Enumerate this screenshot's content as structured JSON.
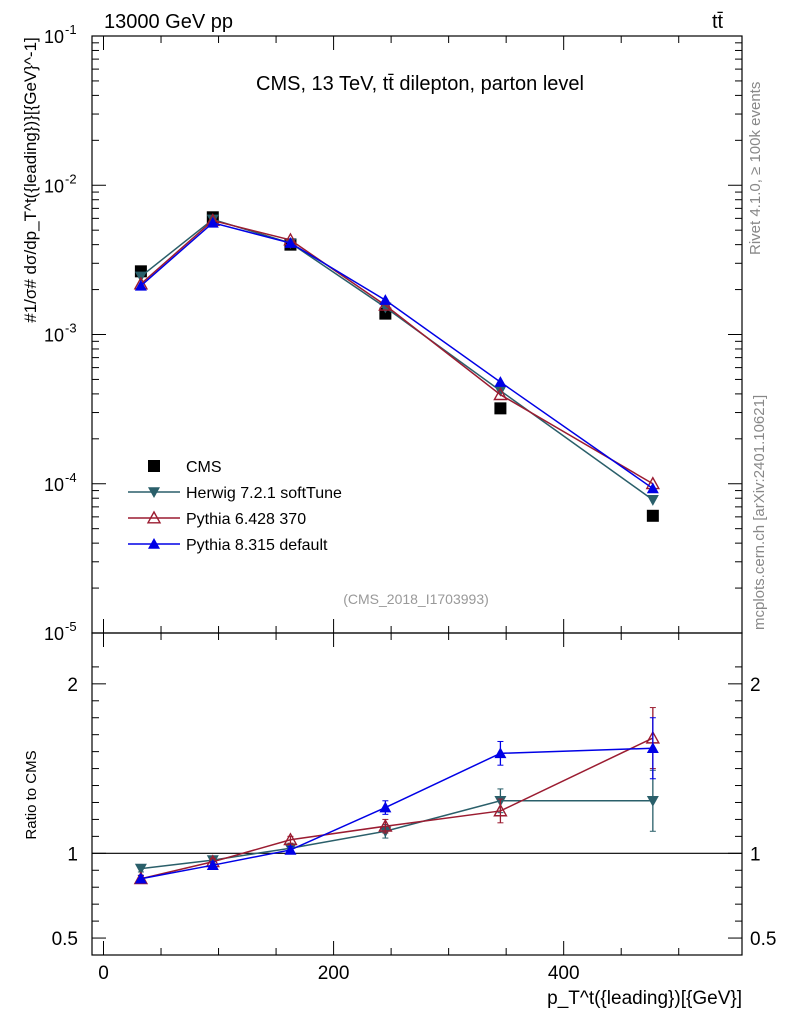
{
  "header": {
    "left": "13000 GeV pp",
    "right": "tt̄"
  },
  "side_texts": {
    "rivet": "Rivet 4.1.0, ≥ 100k events",
    "mcplots": "mcplots.cern.ch [arXiv:2401.10621]"
  },
  "chart_data": {
    "type": "line",
    "title": "CMS, 13 TeV, tt̄ dilepton, parton level",
    "analysis_id": "(CMS_2018_I1703993)",
    "xlabel": "p_T^t({leading})[{GeV}]",
    "ylabel": "#1/σ# dσ/dp_T^t({leading})}[{GeV}^-1]",
    "xlim": [
      -10,
      555
    ],
    "ylim_main": [
      1e-05,
      0.1
    ],
    "ylim_ratio": [
      0.4,
      2.3
    ],
    "ratio_ylabel": "Ratio to CMS",
    "x": [
      32.5,
      95,
      162.5,
      245,
      345,
      477.5
    ],
    "x_tick_labels": [
      "0",
      "200",
      "400"
    ],
    "y_tick_labels": [
      "10",
      "10",
      "10",
      "10",
      "10"
    ],
    "y_tick_exponents": [
      "-1",
      "-2",
      "-3",
      "-4",
      "-5"
    ],
    "ratio_tick_labels": [
      "0.5",
      "1",
      "2"
    ],
    "series": [
      {
        "name": "CMS",
        "color": "#000000",
        "marker": "square",
        "values": [
          0.00265,
          0.0061,
          0.004,
          0.00138,
          0.00032,
          6.1e-05
        ],
        "ratio": [
          1.0,
          1.0,
          1.0,
          1.0,
          1.0,
          1.0
        ],
        "ratio_err": [
          0,
          0,
          0,
          0,
          0,
          0
        ]
      },
      {
        "name": "Herwig 7.2.1 softTune",
        "color": "#2a5f6a",
        "marker": "triangle-down",
        "values": [
          0.00245,
          0.0059,
          0.0041,
          0.00152,
          0.00042,
          7.8e-05
        ],
        "ratio": [
          0.91,
          0.96,
          1.03,
          1.13,
          1.31,
          1.31
        ],
        "ratio_err": [
          0.02,
          0.02,
          0.02,
          0.04,
          0.07,
          0.18
        ]
      },
      {
        "name": "Pythia 6.428 370",
        "color": "#9b1c31",
        "marker": "triangle-open",
        "values": [
          0.00218,
          0.0058,
          0.0043,
          0.00157,
          0.000395,
          0.0001
        ],
        "ratio": [
          0.85,
          0.95,
          1.08,
          1.16,
          1.25,
          1.68
        ],
        "ratio_err": [
          0.02,
          0.02,
          0.02,
          0.04,
          0.07,
          0.18
        ]
      },
      {
        "name": "Pythia 8.315 default",
        "color": "#0000e6",
        "marker": "triangle-up",
        "values": [
          0.00212,
          0.0056,
          0.0041,
          0.0017,
          0.00048,
          9.3e-05
        ],
        "ratio": [
          0.85,
          0.93,
          1.02,
          1.27,
          1.59,
          1.62
        ],
        "ratio_err": [
          0.02,
          0.02,
          0.02,
          0.04,
          0.07,
          0.18
        ]
      }
    ],
    "legend": [
      "CMS",
      "Herwig 7.2.1 softTune",
      "Pythia 6.428 370",
      "Pythia 8.315 default"
    ],
    "legend_position": "bottom-left"
  }
}
